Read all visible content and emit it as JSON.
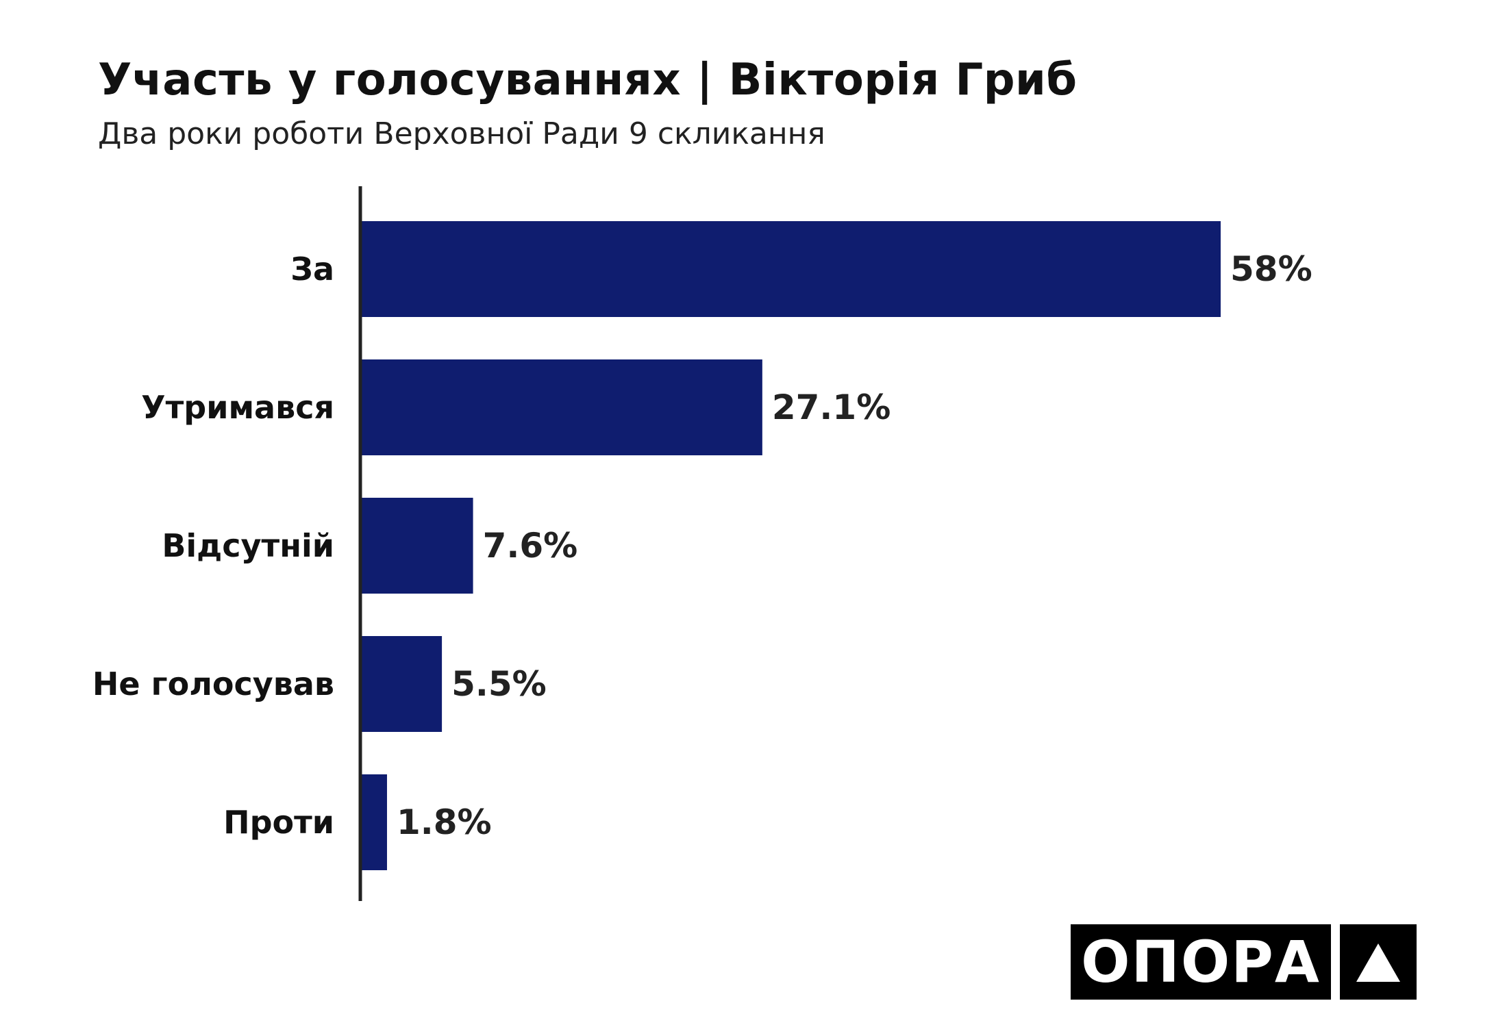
{
  "header": {
    "title": "Участь у голосуваннях | Вікторія Гриб",
    "subtitle": "Два роки роботи Верховної Ради 9 скликання"
  },
  "logo": {
    "text": "ОПОРА",
    "icon": "triangle-icon"
  },
  "colors": {
    "bar": "#0f1d6f",
    "axis": "#222222",
    "text": "#111111"
  },
  "chart_data": {
    "type": "bar",
    "orientation": "horizontal",
    "title": "Участь у голосуваннях | Вікторія Гриб",
    "subtitle": "Два роки роботи Верховної Ради 9 скликання",
    "categories": [
      "За",
      "Утримався",
      "Відсутній",
      "Не голосував",
      "Проти"
    ],
    "values": [
      58,
      27.1,
      7.6,
      5.5,
      1.8
    ],
    "data_labels": [
      "58%",
      "27.1%",
      "7.6%",
      "5.5%",
      "1.8%"
    ],
    "xlabel": "",
    "ylabel": "",
    "xlim": [
      0,
      58
    ],
    "grid": false,
    "legend": "none"
  }
}
